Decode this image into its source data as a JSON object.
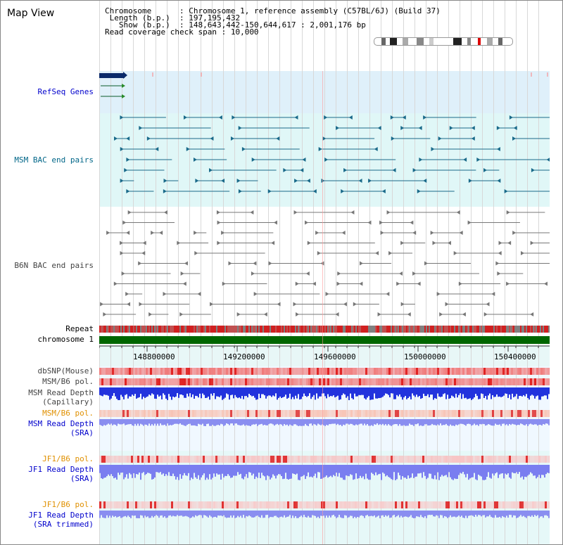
{
  "title": "Map View",
  "info": {
    "chromosome_key": "Chromosome",
    "chromosome_val": ": Chromosome 1, reference assembly (C57BL/6J) (Build 37)",
    "length_key": "Length (b.p.)",
    "length_val": ": 197,195,432",
    "show_key": "Show (b.p.)",
    "show_val": ": 148,643,442-150,644,617 : 2,001,176 bp",
    "span_key": "Read coverage check span",
    "span_val": ": 10,000"
  },
  "tracks": {
    "refseq": "RefSeq Genes",
    "msm_bac": "MSM BAC end pairs",
    "b6n_bac": "B6N BAC end pairs",
    "repeat": "Repeat",
    "chromosome": "chromosome 1",
    "dbsnp": "dbSNP(Mouse)",
    "msm_b6_pol_cap": "MSM/B6 pol.",
    "msm_depth_cap_1": "MSM Read Depth",
    "msm_depth_cap_2": "(Capillary)",
    "msm_b6_pol_sra": "MSM/B6 pol.",
    "msm_depth_sra_1": "MSM Read Depth",
    "msm_depth_sra_2": "(SRA)",
    "jf1_pol_1": "JF1/B6 pol.",
    "jf1_depth_1": "JF1 Read Depth",
    "jf1_depth_1b": "(SRA)",
    "jf1_pol_2": "JF1/B6 pol.",
    "jf1_depth_2": "JF1 Read Depth",
    "jf1_depth_2b": "(SRA trimmed)"
  },
  "axis_ticks": [
    "148800000",
    "149200000",
    "149600000",
    "150000000",
    "150400000"
  ],
  "colors": {
    "refseq_bg": "#dff0fa",
    "msm_bg": "#e0f7f7",
    "chromosome_bar": "#006600",
    "depth_blue": "#2233dd",
    "depth_light": "#8a8ef0",
    "pol_red": "#ee3333",
    "selection": "#ff8080"
  }
}
